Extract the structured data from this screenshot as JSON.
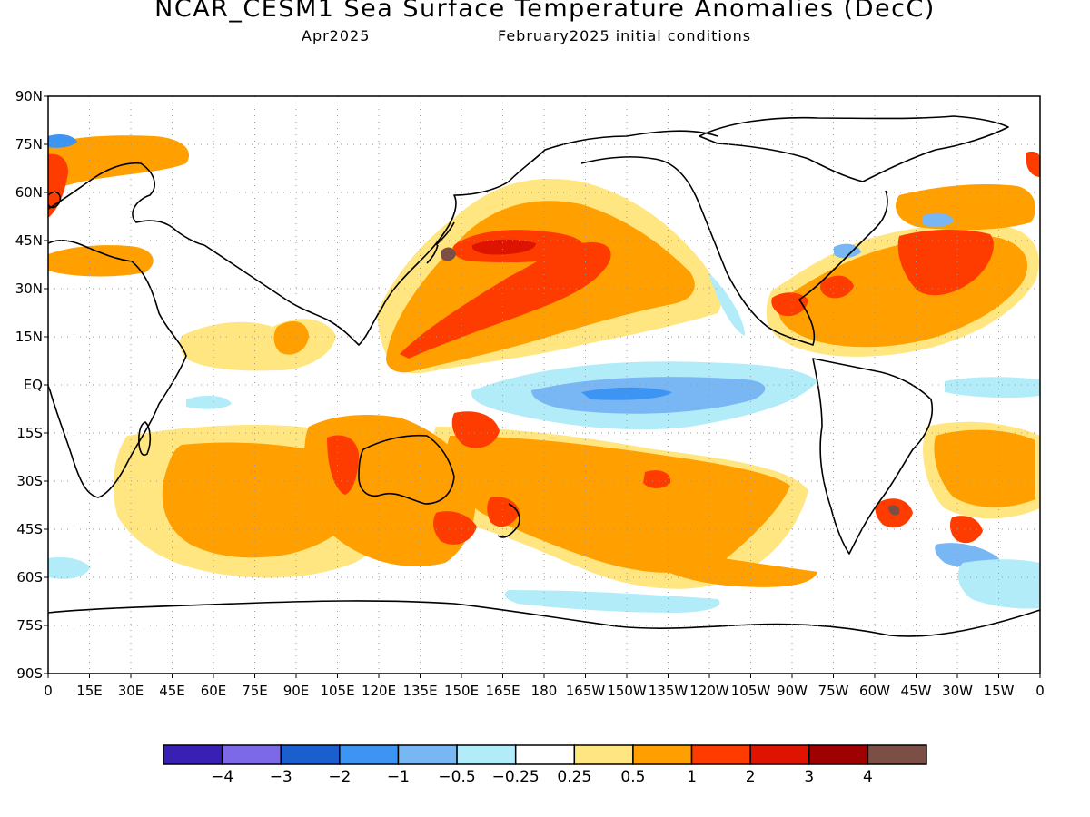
{
  "title": "NCAR_CESM1 Sea Surface Temperature Anomalies (DecC)",
  "subtitle_left": "Apr2025",
  "subtitle_right": "February2025 initial conditions",
  "map": {
    "lat_labels": [
      "90N",
      "75N",
      "60N",
      "45N",
      "30N",
      "15N",
      "EQ",
      "15S",
      "30S",
      "45S",
      "60S",
      "75S",
      "90S"
    ],
    "lon_labels": [
      "0",
      "15E",
      "30E",
      "45E",
      "60E",
      "75E",
      "90E",
      "105E",
      "120E",
      "135E",
      "150E",
      "165E",
      "180",
      "165W",
      "150W",
      "135W",
      "120W",
      "105W",
      "90W",
      "75W",
      "60W",
      "45W",
      "30W",
      "15W",
      "0"
    ],
    "grid": "dotted"
  },
  "colorbar": {
    "colors": [
      "#3a1fb4",
      "#7b69e8",
      "#1b5fcf",
      "#3d94f2",
      "#78b6f4",
      "#b3ecf9",
      "#ffffff",
      "#ffe680",
      "#ff9f00",
      "#ff3c00",
      "#df1400",
      "#a00000",
      "#7b4f45"
    ],
    "labels": [
      "−4",
      "−3",
      "−2",
      "−1",
      "−0.5",
      "−0.25",
      "0.25",
      "0.5",
      "1",
      "2",
      "3",
      "4"
    ]
  }
}
